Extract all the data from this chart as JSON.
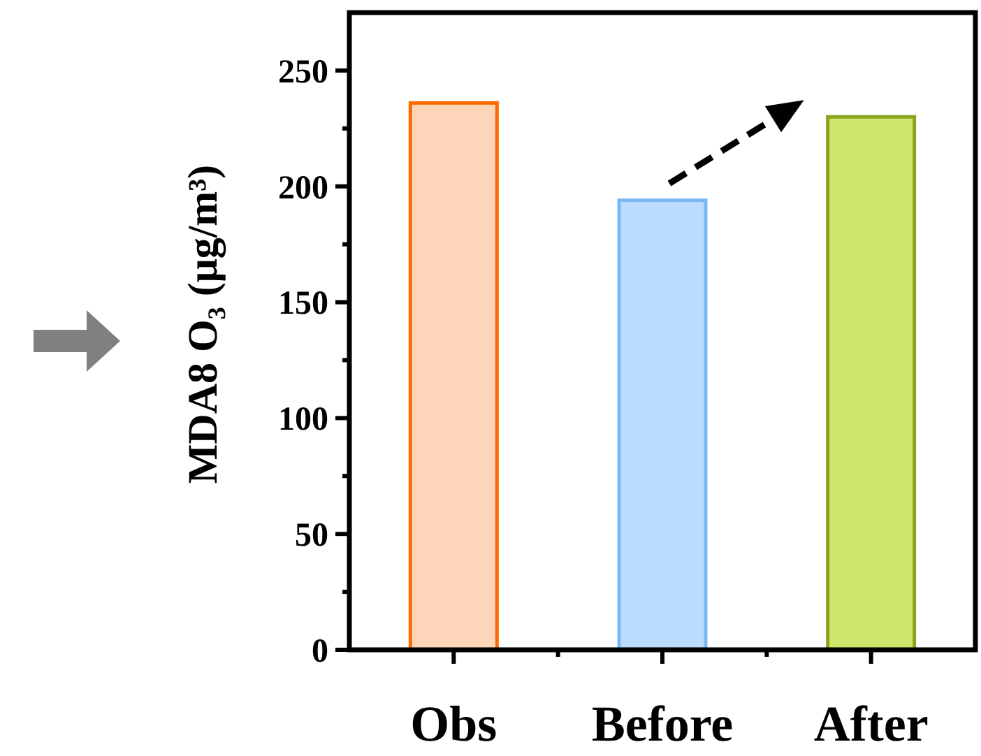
{
  "chart_data": {
    "type": "bar",
    "ylabel": "MDA8 O₃ (μg/m³)",
    "categories": [
      "Obs",
      "Before",
      "After"
    ],
    "values": [
      236,
      194,
      230
    ],
    "colors": [
      "#fdd5b9",
      "#bbdcfc",
      "#cde76a"
    ],
    "ylim": [
      0,
      275
    ],
    "yticks": [
      0,
      {
        "value": 25,
        "label": null
      },
      50,
      {
        "value": 75,
        "label": null
      },
      100,
      {
        "value": 125,
        "label": null
      },
      150,
      {
        "value": 175,
        "label": null
      },
      200,
      {
        "value": 225,
        "label": null
      },
      250
    ],
    "grid": false
  }
}
